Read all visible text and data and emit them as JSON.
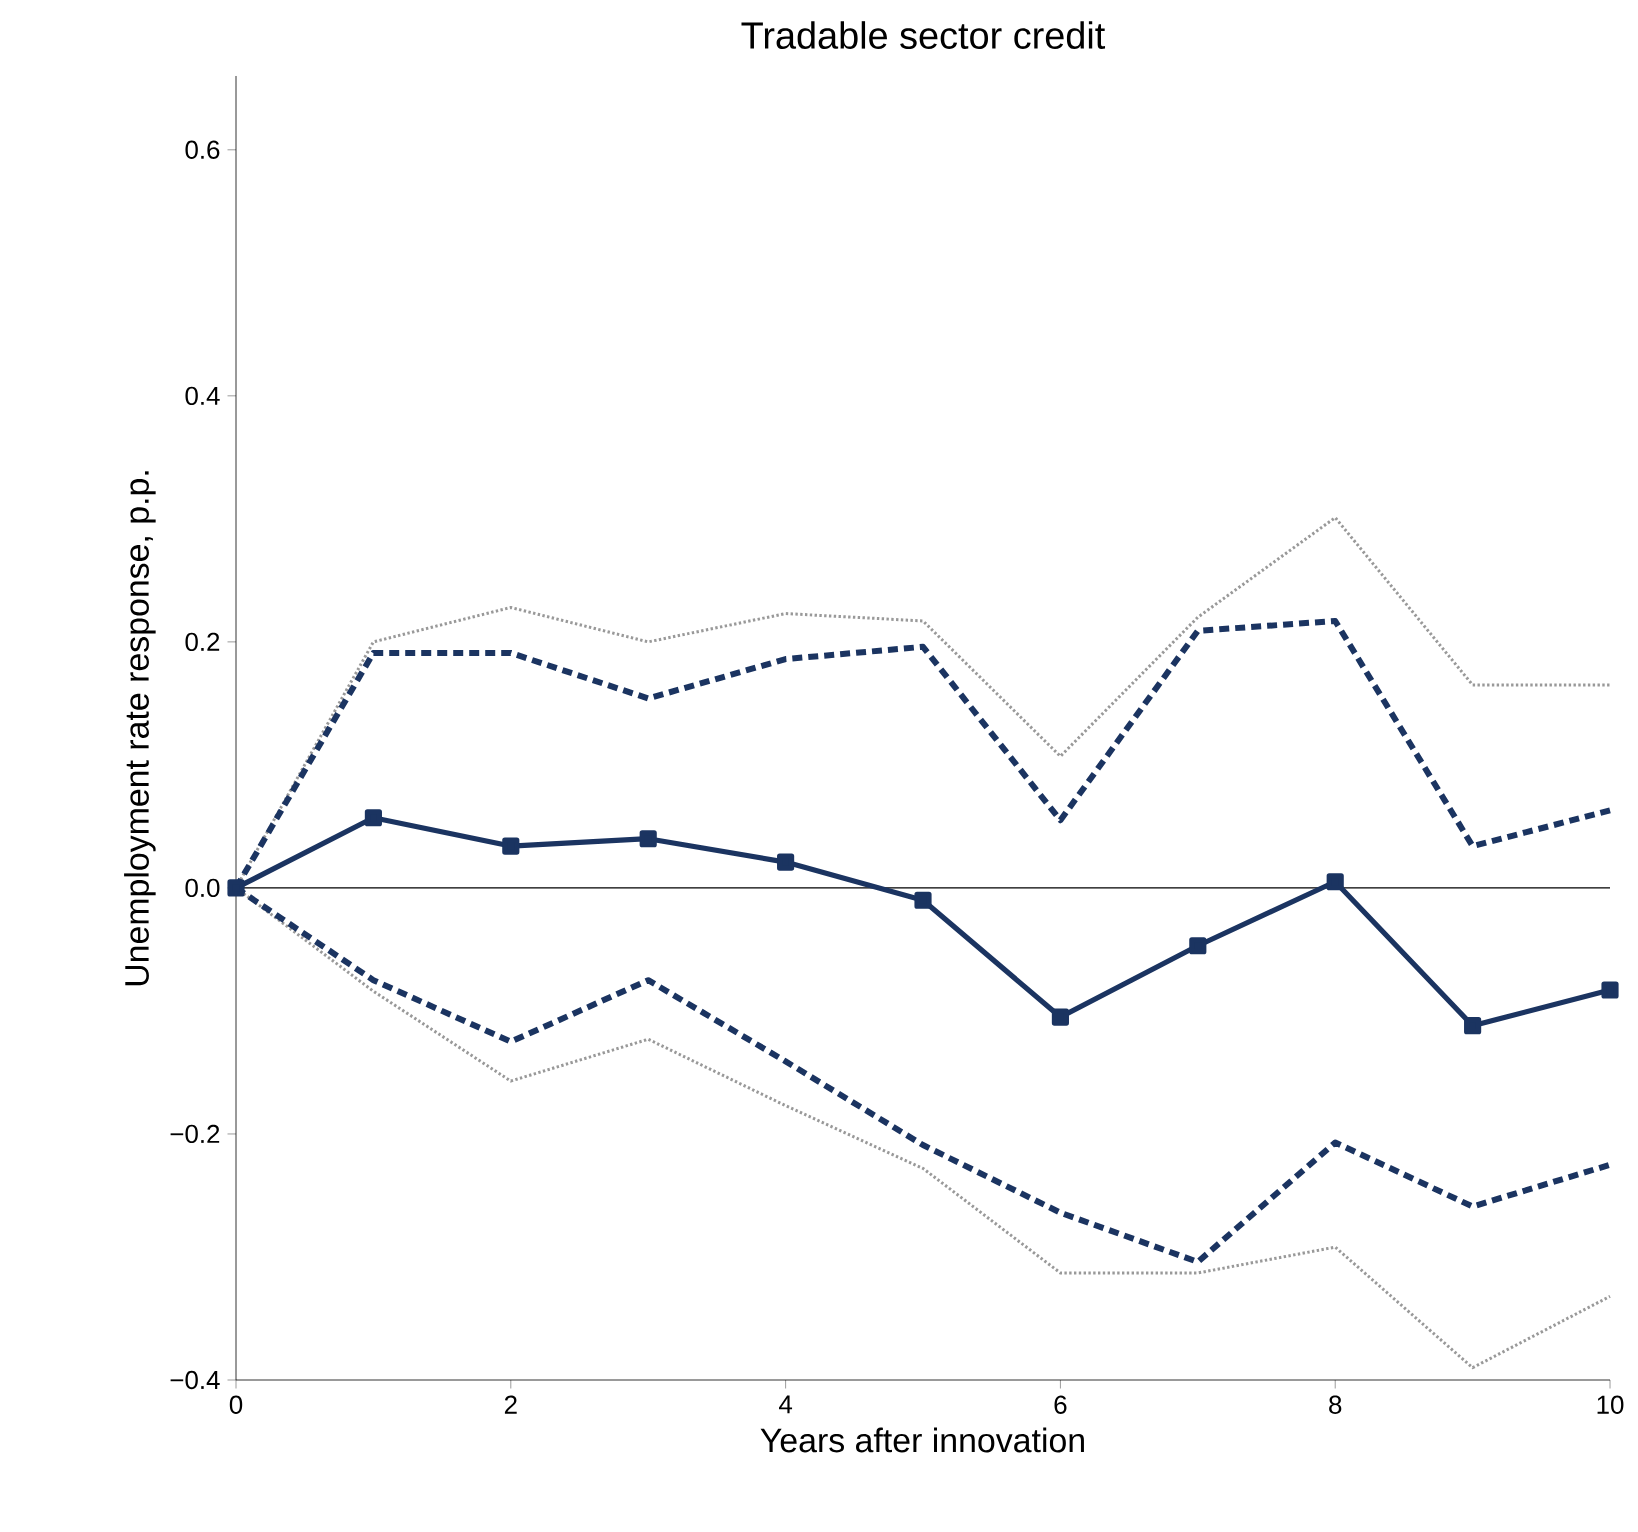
{
  "chart_data": {
    "type": "line",
    "title": "Tradable sector credit",
    "xlabel": "Years after innovation",
    "ylabel": "Unemployment rate response, p.p.",
    "x": [
      0,
      1,
      2,
      3,
      4,
      5,
      6,
      7,
      8,
      9,
      10
    ],
    "series": [
      {
        "color": "#999999",
        "line_style": "dotted",
        "marker": "none",
        "values": [
          0,
          0.2,
          0.228,
          0.2,
          0.223,
          0.217,
          0.107,
          0.22,
          0.301,
          0.165,
          0.165
        ]
      },
      {
        "color": "#999999",
        "line_style": "dotted",
        "marker": "none",
        "values": [
          0,
          -0.084,
          -0.157,
          -0.123,
          -0.177,
          -0.228,
          -0.313,
          -0.313,
          -0.292,
          -0.39,
          -0.332
        ]
      },
      {
        "color": "#1b3461",
        "line_style": "dashed",
        "marker": "none",
        "values": [
          0,
          0.191,
          0.191,
          0.154,
          0.186,
          0.196,
          0.055,
          0.209,
          0.217,
          0.034,
          0.063
        ]
      },
      {
        "color": "#1b3461",
        "line_style": "dashed",
        "marker": "none",
        "values": [
          0,
          -0.075,
          -0.125,
          -0.075,
          -0.141,
          -0.209,
          -0.264,
          -0.304,
          -0.207,
          -0.259,
          -0.225
        ]
      },
      {
        "color": "#1b3461",
        "line_style": "solid",
        "marker": "square",
        "values": [
          0,
          0.057,
          0.034,
          0.04,
          0.021,
          -0.01,
          -0.105,
          -0.047,
          0.005,
          -0.112,
          -0.083
        ]
      }
    ],
    "xlim": [
      0,
      10
    ],
    "ylim": [
      -0.4,
      0.66
    ],
    "xticks": [
      0,
      2,
      4,
      6,
      8,
      10
    ],
    "yticks": [
      {
        "value": -0.4,
        "label": "−0.4"
      },
      {
        "value": -0.2,
        "label": "−0.2"
      },
      {
        "value": 0,
        "label": "0.0"
      },
      0.2,
      0.4,
      0.6
    ],
    "ref_lines": [
      {
        "axis": "y",
        "value": 0,
        "color": "#000000"
      }
    ],
    "grid": false
  }
}
